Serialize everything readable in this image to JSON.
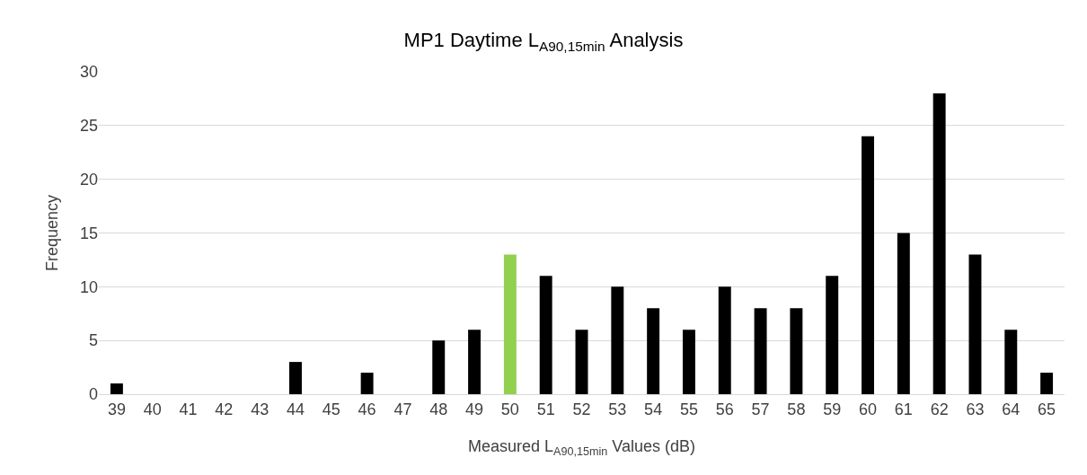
{
  "chart_data": {
    "type": "bar",
    "title": "MP1 Daytime L$_{A90,15min}$ Analysis",
    "xlabel": "Measured L$_{A90,15min}$ Values (dB)",
    "ylabel": "Frequency",
    "categories": [
      "39",
      "40",
      "41",
      "42",
      "43",
      "44",
      "45",
      "46",
      "47",
      "48",
      "49",
      "50",
      "51",
      "52",
      "53",
      "54",
      "55",
      "56",
      "57",
      "58",
      "59",
      "60",
      "61",
      "62",
      "63",
      "64",
      "65"
    ],
    "values": [
      1,
      0,
      0,
      0,
      0,
      3,
      0,
      2,
      0,
      5,
      6,
      13,
      11,
      6,
      10,
      8,
      6,
      10,
      8,
      8,
      11,
      24,
      15,
      28,
      13,
      6,
      2
    ],
    "colors": [
      "#000000",
      "#000000",
      "#000000",
      "#000000",
      "#000000",
      "#000000",
      "#000000",
      "#000000",
      "#000000",
      "#000000",
      "#000000",
      "#92d050",
      "#000000",
      "#000000",
      "#000000",
      "#000000",
      "#000000",
      "#000000",
      "#000000",
      "#000000",
      "#000000",
      "#000000",
      "#000000",
      "#000000",
      "#000000",
      "#000000",
      "#000000"
    ],
    "ylim": [
      0,
      30
    ],
    "yticks": [
      0,
      5,
      10,
      15,
      20,
      25,
      30
    ],
    "grid": "y"
  }
}
